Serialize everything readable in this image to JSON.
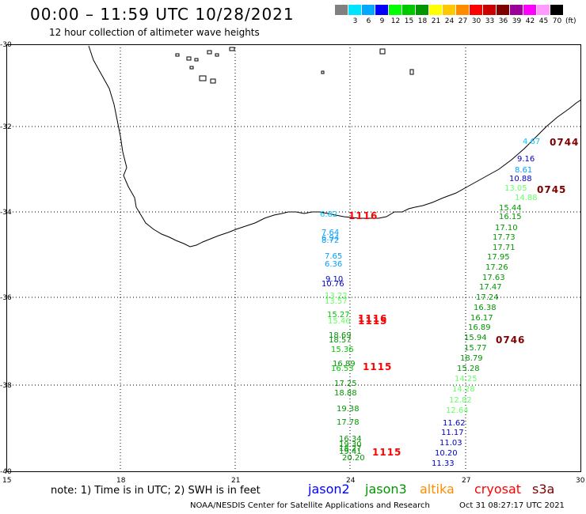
{
  "header": {
    "title": "00:00 – 11:59 UTC 10/28/2021",
    "subtitle": "12 hour collection of altimeter wave heights"
  },
  "colorbar": {
    "unit": "(ft)",
    "swatches": [
      "#808080",
      "#00e5ff",
      "#00a8ff",
      "#0000ff",
      "#00ff00",
      "#00c800",
      "#009600",
      "#ffff00",
      "#ffc800",
      "#ff8c00",
      "#ff0000",
      "#c80000",
      "#800000",
      "#9b009b",
      "#ff00ff",
      "#ff9bff",
      "#000000"
    ],
    "labels": [
      "",
      "3",
      "6",
      "9",
      "12",
      "15",
      "18",
      "21",
      "24",
      "27",
      "30",
      "33",
      "36",
      "39",
      "42",
      "45",
      "70"
    ]
  },
  "axes": {
    "y_labels": [
      "-30",
      "-32",
      "-34",
      "-36",
      "-38",
      "-40"
    ],
    "x_labels": [
      "15",
      "18",
      "21",
      "24",
      "27",
      "30"
    ]
  },
  "tracks": {
    "jason2_a": [
      {
        "t": "4.67",
        "c": "#00c8ff"
      },
      {
        "t": "9.16",
        "c": "#0000c8"
      },
      {
        "t": "8.61",
        "c": "#00a0ff"
      },
      {
        "t": "10.88",
        "c": "#0000c8"
      },
      {
        "t": "13.05",
        "c": "#66ff66"
      },
      {
        "t": "14.88",
        "c": "#66ff66"
      },
      {
        "t": "15.44",
        "c": "#009600"
      },
      {
        "t": "16.15",
        "c": "#009600"
      },
      {
        "t": "17.10",
        "c": "#009600"
      },
      {
        "t": "17.73",
        "c": "#009600"
      },
      {
        "t": "17.71",
        "c": "#009600"
      },
      {
        "t": "17.95",
        "c": "#009600"
      },
      {
        "t": "17.26",
        "c": "#009600"
      },
      {
        "t": "17.63",
        "c": "#009600"
      },
      {
        "t": "17.47",
        "c": "#009600"
      },
      {
        "t": "17.24",
        "c": "#009600"
      },
      {
        "t": "16.38",
        "c": "#009600"
      },
      {
        "t": "16.17",
        "c": "#009600"
      },
      {
        "t": "16.89",
        "c": "#009600"
      },
      {
        "t": "15.94",
        "c": "#009600"
      },
      {
        "t": "15.77",
        "c": "#009600"
      },
      {
        "t": "18.79",
        "c": "#009600"
      },
      {
        "t": "15.28",
        "c": "#009600"
      },
      {
        "t": "14.25",
        "c": "#66ff66"
      },
      {
        "t": "14.28",
        "c": "#66ff66"
      },
      {
        "t": "12.82",
        "c": "#66ff66"
      },
      {
        "t": "12.64",
        "c": "#66ff66"
      },
      {
        "t": "11.62",
        "c": "#0000c8"
      },
      {
        "t": "11.17",
        "c": "#0000c8"
      },
      {
        "t": "11.03",
        "c": "#0000c8"
      },
      {
        "t": "10.20",
        "c": "#0000c8"
      },
      {
        "t": "11.33",
        "c": "#0000c8"
      }
    ],
    "cryosat": [
      {
        "t": "6.82",
        "c": "#00c8ff"
      },
      {
        "t": "7.64",
        "c": "#00a0ff"
      },
      {
        "t": "6.94",
        "c": "#00a0ff"
      },
      {
        "t": "8.72",
        "c": "#00a0ff"
      },
      {
        "t": "7.65",
        "c": "#00a0ff"
      },
      {
        "t": "6.36",
        "c": "#00a0ff"
      },
      {
        "t": "9.10",
        "c": "#0000c8"
      },
      {
        "t": "10.76",
        "c": "#0000c8"
      },
      {
        "t": "13.22",
        "c": "#66ff66"
      },
      {
        "t": "13.57",
        "c": "#66ff66"
      },
      {
        "t": "15.27",
        "c": "#00c800"
      },
      {
        "t": "15.46",
        "c": "#66ff66"
      },
      {
        "t": "18.69",
        "c": "#009600"
      },
      {
        "t": "18.57",
        "c": "#009600"
      },
      {
        "t": "15.36",
        "c": "#00c800"
      },
      {
        "t": "16.89",
        "c": "#009600"
      },
      {
        "t": "16.53",
        "c": "#00c800"
      },
      {
        "t": "17.25",
        "c": "#009600"
      },
      {
        "t": "18.88",
        "c": "#009600"
      },
      {
        "t": "19.38",
        "c": "#009600"
      },
      {
        "t": "17.78",
        "c": "#009600"
      },
      {
        "t": "16.34",
        "c": "#009600"
      },
      {
        "t": "19.30",
        "c": "#009600"
      },
      {
        "t": "18.27",
        "c": "#009600"
      },
      {
        "t": "19.41",
        "c": "#009600"
      },
      {
        "t": "20.20",
        "c": "#009600"
      }
    ]
  },
  "time_labels": [
    {
      "t": "0744",
      "c": "#800000"
    },
    {
      "t": "0745",
      "c": "#800000"
    },
    {
      "t": "0746",
      "c": "#800000"
    },
    {
      "t": "1116",
      "c": "#ff0000"
    },
    {
      "t": "1116",
      "c": "#ff0000"
    },
    {
      "t": "1115",
      "c": "#ff0000"
    },
    {
      "t": "1115",
      "c": "#ff0000"
    },
    {
      "t": "1115",
      "c": "#ff0000"
    }
  ],
  "footer": {
    "note": "note: 1) Time is in UTC; 2) SWH is in feet",
    "legend": [
      {
        "t": "jason2",
        "c": "#0000ff"
      },
      {
        "t": "jason3",
        "c": "#009600"
      },
      {
        "t": "altika",
        "c": "#ff8c00"
      },
      {
        "t": "cryosat",
        "c": "#ff0000"
      },
      {
        "t": "s3a",
        "c": "#800000"
      }
    ],
    "credit": "NOAA/NESDIS Center for Satellite Applications and Research",
    "stamp": "Oct 31 08:27:17 UTC 2021"
  }
}
